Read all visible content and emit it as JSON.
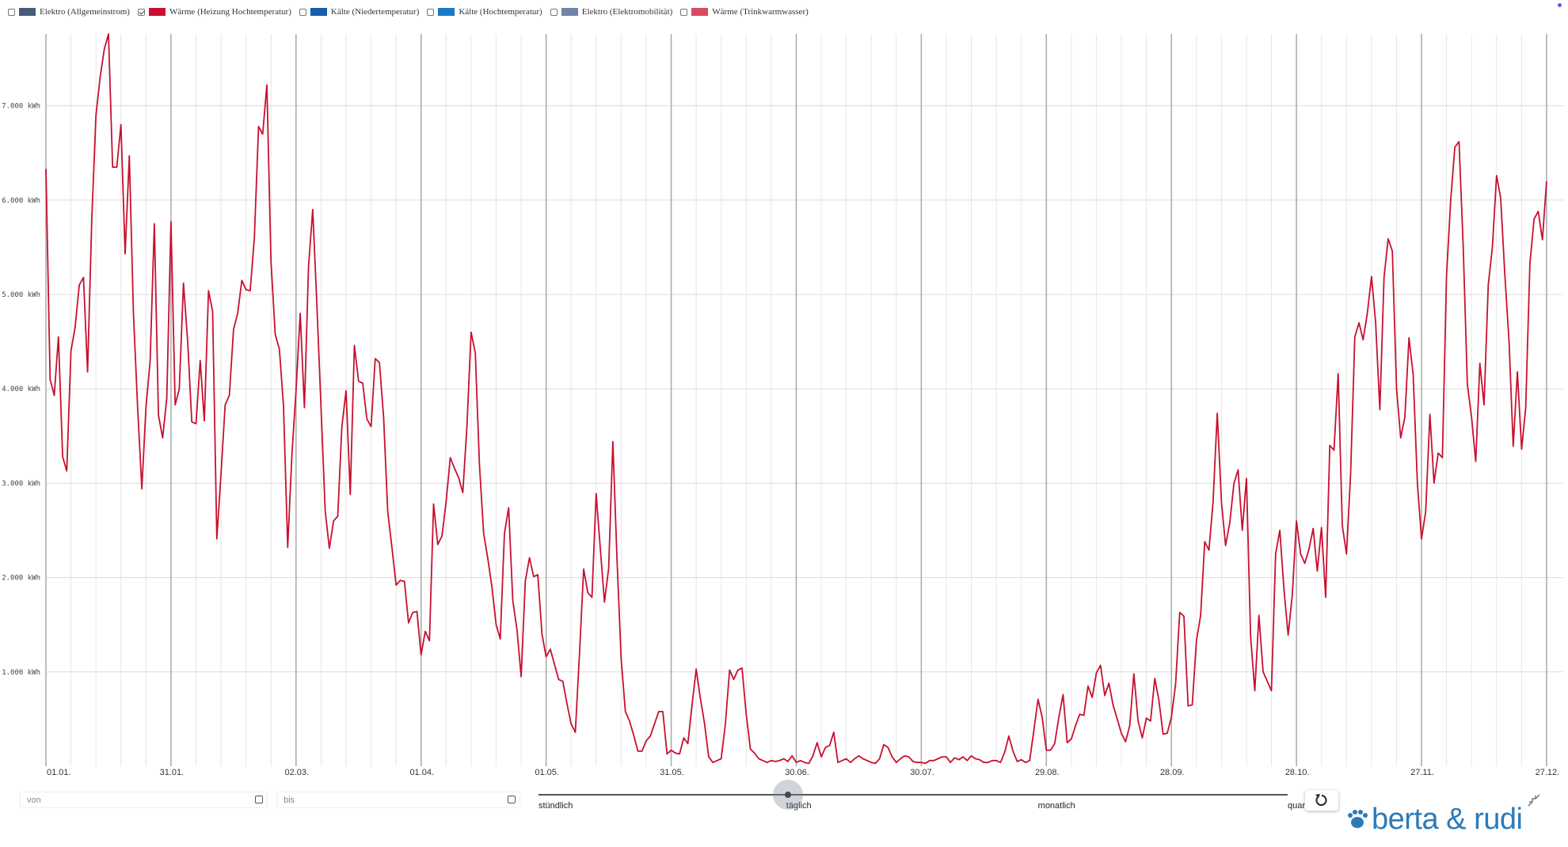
{
  "chart_data": {
    "type": "line",
    "series": [
      {
        "name": "Elektro (Allgemeinstrom)",
        "color": "#4a5a7a",
        "checked": false
      },
      {
        "name": "Wärme (Heizung Hochtemperatur)",
        "color": "#c8102e",
        "checked": true,
        "values": [
          6330,
          4100,
          3930,
          4550,
          3280,
          3130,
          4400,
          4650,
          5100,
          5180,
          4180,
          5800,
          6900,
          7300,
          7600,
          7760,
          6350,
          6350,
          6800,
          5430,
          6470,
          4800,
          3800,
          2940,
          3800,
          4300,
          5750,
          3720,
          3480,
          3900,
          5770,
          3830,
          4000,
          5120,
          4500,
          3650,
          3630,
          4300,
          3660,
          5040,
          4820,
          2410,
          3100,
          3830,
          3930,
          4630,
          4800,
          5150,
          5050,
          5040,
          5600,
          6780,
          6700,
          7220,
          5350,
          4580,
          4420,
          3820,
          2320,
          3300,
          3980,
          4800,
          3800,
          5300,
          5900,
          4900,
          3800,
          2700,
          2310,
          2600,
          2650,
          3600,
          3980,
          2880,
          4460,
          4080,
          4060,
          3680,
          3600,
          4320,
          4280,
          3700,
          2700,
          2320,
          1920,
          1970,
          1960,
          1520,
          1630,
          1640,
          1180,
          1430,
          1330,
          2780,
          2350,
          2440,
          2800,
          3270,
          3160,
          3060,
          2900,
          3600,
          4600,
          4380,
          3200,
          2470,
          2200,
          1900,
          1500,
          1350,
          2470,
          2740,
          1760,
          1450,
          950,
          1960,
          2210,
          2010,
          2030,
          1400,
          1160,
          1240,
          1080,
          920,
          900,
          660,
          450,
          360,
          1200,
          2090,
          1840,
          1790,
          2890,
          2300,
          1740,
          2100,
          3440,
          2200,
          1130,
          580,
          480,
          330,
          160,
          160,
          270,
          320,
          450,
          580,
          580,
          130,
          170,
          140,
          130,
          300,
          240,
          650,
          1030,
          720,
          450,
          100,
          40,
          60,
          80,
          450,
          1020,
          920,
          1020,
          1040,
          550,
          180,
          140,
          80,
          60,
          40,
          60,
          50,
          60,
          80,
          50,
          110,
          40,
          60,
          40,
          30,
          110,
          250,
          100,
          200,
          220,
          360,
          40,
          60,
          80,
          40,
          80,
          110,
          80,
          60,
          40,
          30,
          80,
          230,
          200,
          100,
          40,
          80,
          110,
          100,
          50,
          40,
          40,
          30,
          60,
          60,
          80,
          100,
          100,
          40,
          90,
          70,
          100,
          60,
          110,
          80,
          70,
          40,
          40,
          60,
          60,
          40,
          150,
          320,
          160,
          50,
          70,
          40,
          60,
          380,
          710,
          520,
          170,
          170,
          240,
          520,
          760,
          250,
          290,
          430,
          550,
          540,
          850,
          730,
          990,
          1070,
          750,
          880,
          650,
          500,
          350,
          260,
          430,
          980,
          480,
          300,
          510,
          480,
          930,
          700,
          340,
          350,
          520,
          870,
          1630,
          1590,
          640,
          650,
          1330,
          1600,
          2380,
          2290,
          2800,
          3740,
          2800,
          2340,
          2580,
          3000,
          3140,
          2500,
          3050,
          1380,
          800,
          1600,
          1000,
          900,
          800,
          2250,
          2500,
          1880,
          1390,
          1820,
          2600,
          2250,
          2150,
          2300,
          2520,
          2070,
          2530,
          1790,
          3400,
          3350,
          4160,
          2550,
          2250,
          3100,
          4550,
          4700,
          4520,
          4800,
          5190,
          4700,
          3780,
          5180,
          5590,
          5460,
          4000,
          3480,
          3700,
          4540,
          4150,
          3000,
          2410,
          2700,
          3730,
          3000,
          3320,
          3270,
          5200,
          6000,
          6560,
          6620,
          5500,
          4050,
          3700,
          3230,
          4270,
          3830,
          5100,
          5500,
          6260,
          6020,
          5200,
          4500,
          3390,
          4180,
          3360,
          3800,
          5330,
          5800,
          5880,
          5580,
          6200
        ]
      },
      {
        "name": "Kälte (Niedertemperatur)",
        "color": "#1560a8",
        "checked": false
      },
      {
        "name": "Kälte (Hochtemperatur)",
        "color": "#1a7bc4",
        "checked": false
      },
      {
        "name": "Elektro (Elektromobilität)",
        "color": "#6f86a8",
        "checked": false
      },
      {
        "name": "Wärme (Trinkwarmwasser)",
        "color": "#d94a65",
        "checked": false
      }
    ],
    "x": [
      0,
      1,
      2,
      3,
      4,
      5,
      6,
      7,
      8,
      9,
      10,
      11,
      12,
      13,
      14,
      15,
      16,
      17,
      18,
      19,
      20,
      21,
      22,
      23,
      24,
      25,
      26,
      27,
      28,
      29,
      30,
      31,
      32,
      33,
      34,
      35,
      36,
      37,
      38,
      39,
      40,
      41,
      42,
      43,
      44,
      45,
      46,
      47,
      48,
      49,
      50,
      51,
      52,
      53,
      54,
      55,
      56,
      57,
      58,
      59,
      60,
      61,
      62,
      63,
      64,
      65,
      66,
      67,
      68,
      69,
      70,
      71,
      72,
      73,
      74,
      75,
      76,
      77,
      78,
      79,
      80,
      81,
      82,
      83,
      84,
      85,
      86,
      87,
      88,
      89,
      90,
      91,
      92,
      93,
      94,
      95,
      96,
      97,
      98,
      99,
      100,
      101,
      102,
      103,
      104,
      105,
      106,
      107,
      108,
      109,
      110,
      111,
      112,
      113,
      114,
      115,
      116,
      117,
      118,
      119,
      120,
      121,
      122,
      123,
      124,
      125,
      126,
      127,
      128,
      129,
      130,
      131,
      132,
      133,
      134,
      135,
      136,
      137,
      138,
      139,
      140,
      141,
      142,
      143,
      144,
      145,
      146,
      147,
      148,
      149,
      150,
      151,
      152,
      153,
      154,
      155,
      156,
      157,
      158,
      159,
      160,
      161,
      162,
      163,
      164,
      165,
      166,
      167,
      168,
      169,
      170,
      171,
      172,
      173,
      174,
      175,
      176,
      177,
      178,
      179,
      180,
      181,
      182,
      183,
      184,
      185,
      186,
      187,
      188,
      189,
      190,
      191,
      192,
      193,
      194,
      195,
      196,
      197,
      198,
      199,
      200,
      201,
      202,
      203,
      204,
      205,
      206,
      207,
      208,
      209,
      210,
      211,
      212,
      213,
      214,
      215,
      216,
      217,
      218,
      219,
      220,
      221,
      222,
      223,
      224,
      225,
      226,
      227,
      228,
      229,
      230,
      231,
      232,
      233,
      234,
      235,
      236,
      237,
      238,
      239,
      240,
      241,
      242,
      243,
      244,
      245,
      246,
      247,
      248,
      249,
      250,
      251,
      252,
      253,
      254,
      255,
      256,
      257,
      258,
      259,
      260,
      261,
      262,
      263,
      264,
      265,
      266,
      267,
      268,
      269,
      270,
      271,
      272,
      273,
      274,
      275,
      276,
      277,
      278,
      279,
      280,
      281,
      282,
      283,
      284,
      285,
      286,
      287,
      288,
      289,
      290,
      291,
      292,
      293,
      294,
      295,
      296,
      297,
      298,
      299,
      300,
      301,
      302,
      303,
      304,
      305,
      306,
      307,
      308,
      309,
      310,
      311,
      312,
      313,
      314,
      315,
      316,
      317,
      318,
      319,
      320,
      321,
      322,
      323,
      324,
      325,
      326,
      327,
      328,
      329,
      330,
      331,
      332,
      333,
      334,
      335,
      336,
      337,
      338,
      339,
      340,
      341,
      342,
      343,
      344,
      345,
      346,
      347,
      348,
      349,
      350,
      351,
      352,
      353,
      354,
      355,
      356,
      357,
      358,
      359,
      360
    ],
    "xlim": [
      0,
      364
    ],
    "xticks": [
      {
        "value": 0,
        "label": "01.01."
      },
      {
        "value": 30,
        "label": "31.01."
      },
      {
        "value": 60,
        "label": "02.03."
      },
      {
        "value": 90,
        "label": "01.04."
      },
      {
        "value": 120,
        "label": "01.05."
      },
      {
        "value": 150,
        "label": "31.05."
      },
      {
        "value": 180,
        "label": "30.06."
      },
      {
        "value": 210,
        "label": "30.07."
      },
      {
        "value": 240,
        "label": "29.08."
      },
      {
        "value": 270,
        "label": "28.09."
      },
      {
        "value": 300,
        "label": "28.10."
      },
      {
        "value": 330,
        "label": "27.11."
      },
      {
        "value": 360,
        "label": "27.12."
      }
    ],
    "ylim": [
      0,
      7760
    ],
    "yticks": [
      {
        "value": 1000,
        "label": "1.000 kWh"
      },
      {
        "value": 2000,
        "label": "2.000 kWh"
      },
      {
        "value": 3000,
        "label": "3.000 kWh"
      },
      {
        "value": 4000,
        "label": "4.000 kWh"
      },
      {
        "value": 5000,
        "label": "5.000 kWh"
      },
      {
        "value": 6000,
        "label": "6.000 kWh"
      },
      {
        "value": 7000,
        "label": "7.000 kWh"
      }
    ],
    "grid": true
  },
  "controls": {
    "from": "von",
    "to": "bis",
    "granularity": {
      "options": [
        "stündlich",
        "täglich",
        "monatlich",
        "quar"
      ],
      "selected": 1
    }
  },
  "logo": "berta & rudi"
}
